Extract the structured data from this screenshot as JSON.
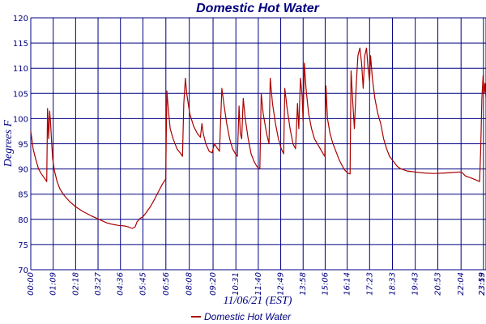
{
  "chart_data": {
    "type": "line",
    "title": "Domestic Hot Water",
    "xlabel": "11/06/21 (EST)",
    "ylabel": "Degrees F",
    "ylim": [
      70,
      120
    ],
    "yticks": [
      70,
      75,
      80,
      85,
      90,
      95,
      100,
      105,
      110,
      115,
      120
    ],
    "x_unit": "time of day (hours)",
    "xlim": [
      0,
      23.35
    ],
    "xticks": [
      {
        "t": 0.0,
        "label": "00:00"
      },
      {
        "t": 1.15,
        "label": "01:09"
      },
      {
        "t": 2.3,
        "label": "02:18"
      },
      {
        "t": 3.45,
        "label": "03:27"
      },
      {
        "t": 4.6,
        "label": "04:36"
      },
      {
        "t": 5.75,
        "label": "05:45"
      },
      {
        "t": 6.93,
        "label": "06:56"
      },
      {
        "t": 8.13,
        "label": "08:08"
      },
      {
        "t": 9.35,
        "label": "09:20"
      },
      {
        "t": 10.52,
        "label": "10:31"
      },
      {
        "t": 11.67,
        "label": "11:40"
      },
      {
        "t": 12.82,
        "label": "12:49"
      },
      {
        "t": 13.97,
        "label": "13:58"
      },
      {
        "t": 15.1,
        "label": "15:06"
      },
      {
        "t": 16.23,
        "label": "16:14"
      },
      {
        "t": 17.38,
        "label": "17:23"
      },
      {
        "t": 18.55,
        "label": "18:33"
      },
      {
        "t": 19.72,
        "label": "19:43"
      },
      {
        "t": 20.88,
        "label": "20:53"
      },
      {
        "t": 22.07,
        "label": "22:04"
      },
      {
        "t": 23.22,
        "label": "23:13"
      },
      {
        "t": 23.35,
        "label": "23:59"
      }
    ],
    "grid": true,
    "legend": "bottom-center",
    "series": [
      {
        "name": "Domestic Hot Water",
        "color": "#aa0000",
        "points": [
          [
            0.0,
            97.5
          ],
          [
            0.12,
            94
          ],
          [
            0.25,
            92
          ],
          [
            0.4,
            90
          ],
          [
            0.55,
            89
          ],
          [
            0.7,
            88.2
          ],
          [
            0.82,
            87.5
          ],
          [
            0.86,
            102
          ],
          [
            0.92,
            96
          ],
          [
            0.97,
            101.5
          ],
          [
            1.02,
            99
          ],
          [
            1.06,
            96
          ],
          [
            1.12,
            92
          ],
          [
            1.22,
            89.5
          ],
          [
            1.35,
            87.5
          ],
          [
            1.5,
            86
          ],
          [
            1.7,
            84.8
          ],
          [
            2.0,
            83.5
          ],
          [
            2.3,
            82.5
          ],
          [
            2.7,
            81.5
          ],
          [
            3.1,
            80.7
          ],
          [
            3.5,
            80
          ],
          [
            3.9,
            79.3
          ],
          [
            4.2,
            79
          ],
          [
            4.5,
            78.8
          ],
          [
            4.8,
            78.7
          ],
          [
            5.0,
            78.5
          ],
          [
            5.2,
            78.2
          ],
          [
            5.35,
            78.5
          ],
          [
            5.45,
            79.5
          ],
          [
            5.6,
            80.2
          ],
          [
            5.75,
            80.5
          ],
          [
            5.95,
            81.5
          ],
          [
            6.15,
            82.6
          ],
          [
            6.35,
            84
          ],
          [
            6.55,
            85.5
          ],
          [
            6.75,
            87
          ],
          [
            6.92,
            88
          ],
          [
            6.98,
            105.5
          ],
          [
            7.05,
            102
          ],
          [
            7.15,
            98
          ],
          [
            7.3,
            96
          ],
          [
            7.5,
            94
          ],
          [
            7.7,
            93
          ],
          [
            7.78,
            92.5
          ],
          [
            7.85,
            103
          ],
          [
            7.93,
            108
          ],
          [
            8.0,
            105
          ],
          [
            8.15,
            101
          ],
          [
            8.35,
            98.5
          ],
          [
            8.55,
            97
          ],
          [
            8.7,
            96.3
          ],
          [
            8.78,
            99
          ],
          [
            8.85,
            97
          ],
          [
            8.98,
            95
          ],
          [
            9.15,
            93.5
          ],
          [
            9.3,
            93.2
          ],
          [
            9.42,
            95
          ],
          [
            9.55,
            94.2
          ],
          [
            9.68,
            93.5
          ],
          [
            9.8,
            106
          ],
          [
            9.9,
            103
          ],
          [
            10.05,
            99
          ],
          [
            10.2,
            96
          ],
          [
            10.35,
            94
          ],
          [
            10.5,
            93
          ],
          [
            10.6,
            92.5
          ],
          [
            10.68,
            102.5
          ],
          [
            10.75,
            97
          ],
          [
            10.82,
            96
          ],
          [
            10.9,
            104
          ],
          [
            11.0,
            100
          ],
          [
            11.15,
            96
          ],
          [
            11.3,
            93
          ],
          [
            11.45,
            91.5
          ],
          [
            11.6,
            90.5
          ],
          [
            11.75,
            90
          ],
          [
            11.82,
            105
          ],
          [
            11.92,
            101
          ],
          [
            12.1,
            97
          ],
          [
            12.22,
            95
          ],
          [
            12.28,
            108
          ],
          [
            12.4,
            103
          ],
          [
            12.55,
            99
          ],
          [
            12.7,
            96
          ],
          [
            12.85,
            94
          ],
          [
            12.97,
            93
          ],
          [
            13.03,
            106
          ],
          [
            13.15,
            102
          ],
          [
            13.3,
            98
          ],
          [
            13.45,
            95
          ],
          [
            13.58,
            94
          ],
          [
            13.68,
            103
          ],
          [
            13.75,
            98
          ],
          [
            13.83,
            108
          ],
          [
            13.92,
            104.5
          ],
          [
            13.97,
            99.5
          ],
          [
            14.03,
            111
          ],
          [
            14.12,
            106
          ],
          [
            14.25,
            101
          ],
          [
            14.4,
            98
          ],
          [
            14.55,
            96
          ],
          [
            14.7,
            95
          ],
          [
            14.85,
            94
          ],
          [
            15.0,
            93
          ],
          [
            15.08,
            92.5
          ],
          [
            15.14,
            106.5
          ],
          [
            15.22,
            100
          ],
          [
            15.35,
            97
          ],
          [
            15.5,
            95
          ],
          [
            15.65,
            93.5
          ],
          [
            15.8,
            92
          ],
          [
            15.95,
            90.8
          ],
          [
            16.1,
            89.8
          ],
          [
            16.25,
            89.2
          ],
          [
            16.38,
            89
          ],
          [
            16.43,
            109.5
          ],
          [
            16.52,
            103
          ],
          [
            16.6,
            98
          ],
          [
            16.7,
            107
          ],
          [
            16.78,
            112.5
          ],
          [
            16.88,
            114
          ],
          [
            16.97,
            111
          ],
          [
            17.05,
            106
          ],
          [
            17.13,
            112.5
          ],
          [
            17.22,
            114
          ],
          [
            17.3,
            110
          ],
          [
            17.38,
            107.5
          ],
          [
            17.43,
            112.5
          ],
          [
            17.52,
            108
          ],
          [
            17.65,
            104
          ],
          [
            17.8,
            101
          ],
          [
            17.95,
            99
          ],
          [
            18.1,
            96
          ],
          [
            18.25,
            94
          ],
          [
            18.4,
            92.5
          ],
          [
            18.6,
            91.5
          ],
          [
            18.8,
            90.5
          ],
          [
            19.0,
            90
          ],
          [
            19.3,
            89.6
          ],
          [
            19.7,
            89.4
          ],
          [
            20.2,
            89.2
          ],
          [
            20.7,
            89.1
          ],
          [
            21.2,
            89.2
          ],
          [
            21.6,
            89.3
          ],
          [
            22.0,
            89.4
          ],
          [
            22.12,
            89.3
          ],
          [
            22.3,
            88.6
          ],
          [
            22.6,
            88.2
          ],
          [
            22.85,
            87.8
          ],
          [
            23.02,
            87.5
          ],
          [
            23.08,
            94
          ],
          [
            23.14,
            104
          ],
          [
            23.2,
            108.5
          ],
          [
            23.26,
            105
          ],
          [
            23.3,
            107
          ],
          [
            23.35,
            104
          ]
        ]
      }
    ]
  }
}
